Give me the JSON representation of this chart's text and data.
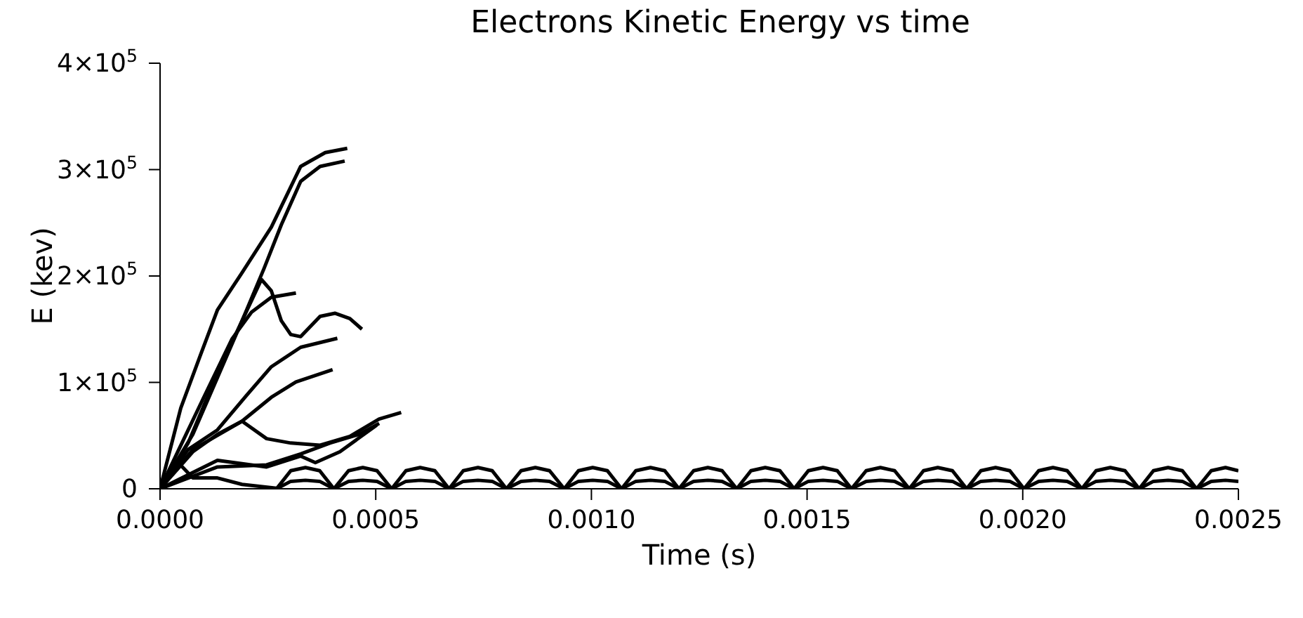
{
  "chart_data": {
    "type": "line",
    "title": "Electrons Kinetic Energy vs time",
    "xlabel": "Time (s)",
    "ylabel": "E (kev)",
    "xlim": [
      0,
      0.0025
    ],
    "xticks": [
      {
        "value": 0,
        "label": "0.0000"
      },
      {
        "value": 0.0005,
        "label": "0.0005"
      },
      {
        "value": 0.001,
        "label": "0.0010"
      },
      {
        "value": 0.0015,
        "label": "0.0015"
      },
      {
        "value": 0.002,
        "label": "0.0020"
      },
      {
        "value": 0.0025,
        "label": "0.0025"
      }
    ],
    "ylim": [
      0,
      400000
    ],
    "yticks": [
      0,
      {
        "value": 100000,
        "label": "1×10$^{5}$"
      },
      {
        "value": 200000,
        "label": "2×10$^{5}$"
      },
      {
        "value": 300000,
        "label": "3×10$^{5}$"
      },
      {
        "value": 400000,
        "label": "4×10$^{5}$"
      }
    ],
    "series": [
      {
        "color": "#000000",
        "x": [
          0,
          4.8e-05,
          9.3e-05,
          0.000133,
          0.00019,
          0.000258,
          0.000326,
          0.000383,
          0.000434
        ],
        "values": [
          0,
          75800,
          125000,
          168000,
          203000,
          246000,
          303000,
          316000,
          320000
        ]
      },
      {
        "color": "#000000",
        "x": [
          0,
          6.5e-05,
          0.000133,
          0.00019,
          0.000241,
          0.000281,
          0.000326,
          0.000371,
          0.000428
        ],
        "values": [
          0,
          43000,
          108600,
          157800,
          207000,
          248000,
          289000,
          303000,
          308000
        ]
      },
      {
        "color": "#000000",
        "x": [
          0,
          7.6e-05,
          0.000133,
          0.00019,
          0.000235,
          0.000258,
          0.000281,
          0.000303,
          0.000326,
          0.000371,
          0.000406,
          0.00044,
          0.000468
        ],
        "values": [
          0,
          51200,
          104500,
          157800,
          196700,
          186000,
          158000,
          145000,
          143000,
          162000,
          165000,
          160000,
          150000
        ]
      },
      {
        "color": "#000000",
        "x": [
          0,
          9.9e-05,
          0.000167,
          0.000212,
          0.000258,
          0.000315
        ],
        "values": [
          0,
          84000,
          141000,
          166000,
          180000,
          184000
        ]
      },
      {
        "color": "#000000",
        "x": [
          0,
          6.5e-05,
          0.000133,
          0.000201,
          0.000258,
          0.000326,
          0.000411
        ],
        "values": [
          0,
          36900,
          55300,
          88100,
          114700,
          133000,
          141400
        ]
      },
      {
        "color": "#000000",
        "x": [
          0,
          7.6e-05,
          0.00019,
          0.000258,
          0.000315,
          0.0004
        ],
        "values": [
          0,
          36900,
          63500,
          86000,
          100400,
          111900
        ]
      },
      {
        "color": "#000000",
        "x": [
          0,
          7.6e-05,
          0.000133,
          0.00019,
          0.000247,
          0.000303,
          0.000371,
          0.00044,
          0.000508,
          0.000559
        ],
        "values": [
          0,
          34800,
          51200,
          63500,
          47100,
          43000,
          41000,
          49200,
          65600,
          71700
        ]
      },
      {
        "color": "#000000",
        "x": [
          0,
          0.000133,
          0.000247,
          0.000326,
          0.000394,
          0.000462,
          0.000508
        ],
        "values": [
          0,
          20500,
          22500,
          32800,
          43000,
          51200,
          61500
        ]
      },
      {
        "color": "#000000",
        "x": [
          0,
          0.000133,
          0.000247,
          0.000326,
          0.00036,
          0.000417,
          0.000502
        ],
        "values": [
          0,
          26700,
          20500,
          30700,
          24600,
          34800,
          59800
        ]
      },
      {
        "color": "#000000",
        "x": [
          0,
          4.2e-05,
          7.6e-05,
          0.000133,
          0.00019,
          0.000281
        ],
        "values": [
          0,
          24600,
          10200,
          10200,
          4100,
          0
        ]
      },
      {
        "color": "#000000",
        "x": [
          0.00027,
          0.000303,
          0.000337,
          0.00037,
          0.000403,
          0.000437,
          0.00047,
          0.000503,
          0.000537,
          0.00057,
          0.000603,
          0.000637,
          0.00067,
          0.000703,
          0.000737,
          0.00077,
          0.000803,
          0.000837,
          0.00087,
          0.000903,
          0.000937,
          0.00097,
          0.001003,
          0.001037,
          0.00107,
          0.001103,
          0.001137,
          0.00117,
          0.001203,
          0.001237,
          0.00127,
          0.001303,
          0.001337,
          0.00137,
          0.001403,
          0.001437,
          0.00147,
          0.001503,
          0.001537,
          0.00157,
          0.001603,
          0.001637,
          0.00167,
          0.001703,
          0.001737,
          0.00177,
          0.001803,
          0.001837,
          0.00187,
          0.001903,
          0.001937,
          0.00197,
          0.002003,
          0.002037,
          0.00207,
          0.002103,
          0.002137,
          0.00217,
          0.002203,
          0.002237,
          0.00227,
          0.002303,
          0.002337,
          0.00237,
          0.002403,
          0.002437,
          0.00247,
          0.0025
        ],
        "values": [
          0,
          17000,
          20000,
          17000,
          0,
          17000,
          20000,
          17000,
          0,
          17000,
          20000,
          17000,
          0,
          17000,
          20000,
          17000,
          0,
          17000,
          20000,
          17000,
          0,
          17000,
          20000,
          17000,
          0,
          17000,
          20000,
          17000,
          0,
          17000,
          20000,
          17000,
          0,
          17000,
          20000,
          17000,
          0,
          17000,
          20000,
          17000,
          0,
          17000,
          20000,
          17000,
          0,
          17000,
          20000,
          17000,
          0,
          17000,
          20000,
          17000,
          0,
          17000,
          20000,
          17000,
          0,
          17000,
          20000,
          17000,
          0,
          17000,
          20000,
          17000,
          0,
          17000,
          20000,
          17000
        ]
      },
      {
        "color": "#000000",
        "x": [
          0.00027,
          0.000303,
          0.000337,
          0.00037,
          0.000403,
          0.000437,
          0.00047,
          0.000503,
          0.000537,
          0.00057,
          0.000603,
          0.000637,
          0.00067,
          0.000703,
          0.000737,
          0.00077,
          0.000803,
          0.000837,
          0.00087,
          0.000903,
          0.000937,
          0.00097,
          0.001003,
          0.001037,
          0.00107,
          0.001103,
          0.001137,
          0.00117,
          0.001203,
          0.001237,
          0.00127,
          0.001303,
          0.001337,
          0.00137,
          0.001403,
          0.001437,
          0.00147,
          0.001503,
          0.001537,
          0.00157,
          0.001603,
          0.001637,
          0.00167,
          0.001703,
          0.001737,
          0.00177,
          0.001803,
          0.001837,
          0.00187,
          0.001903,
          0.001937,
          0.00197,
          0.002003,
          0.002037,
          0.00207,
          0.002103,
          0.002137,
          0.00217,
          0.002203,
          0.002237,
          0.00227,
          0.002303,
          0.002337,
          0.00237,
          0.002403,
          0.002437,
          0.00247,
          0.0025
        ],
        "values": [
          0,
          7000,
          8000,
          7000,
          0,
          7000,
          8000,
          7000,
          0,
          7000,
          8000,
          7000,
          0,
          7000,
          8000,
          7000,
          0,
          7000,
          8000,
          7000,
          0,
          7000,
          8000,
          7000,
          0,
          7000,
          8000,
          7000,
          0,
          7000,
          8000,
          7000,
          0,
          7000,
          8000,
          7000,
          0,
          7000,
          8000,
          7000,
          0,
          7000,
          8000,
          7000,
          0,
          7000,
          8000,
          7000,
          0,
          7000,
          8000,
          7000,
          0,
          7000,
          8000,
          7000,
          0,
          7000,
          8000,
          7000,
          0,
          7000,
          8000,
          7000,
          0,
          7000,
          8000,
          7000
        ]
      }
    ]
  }
}
